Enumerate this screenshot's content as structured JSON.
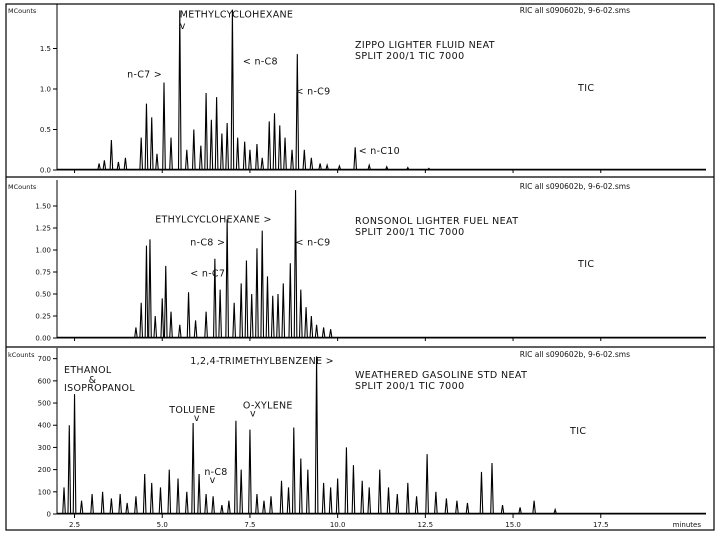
{
  "chart_data": [
    {
      "type": "line",
      "header": "RIC all s090602b,  9-6-02.sms",
      "unit": "MCounts",
      "yticks": [
        "0.0",
        "0.5",
        "1.0",
        "1.5"
      ],
      "ylim": [
        0,
        2.0
      ],
      "xlim": [
        2.0,
        20.5
      ],
      "comment": [
        "ZIPPO LIGHTER FLUID NEAT",
        "SPLIT 200/1 TIC 7000"
      ],
      "trace_label": "TIC",
      "annotations": [
        {
          "text": "METHYLCYCLOHEXANE",
          "x": 5.5,
          "y": 1.88
        },
        {
          "text": "v",
          "x": 5.5,
          "y": 1.74
        },
        {
          "text": "n-C7 >",
          "x": 4.0,
          "y": 1.14
        },
        {
          "text": "< n-C8",
          "x": 7.3,
          "y": 1.3
        },
        {
          "text": "< n-C9",
          "x": 8.8,
          "y": 0.93
        },
        {
          "text": "< n-C10",
          "x": 10.6,
          "y": 0.2
        }
      ],
      "peaks": [
        {
          "x": 3.2,
          "y": 0.08
        },
        {
          "x": 3.35,
          "y": 0.12
        },
        {
          "x": 3.55,
          "y": 0.37
        },
        {
          "x": 3.75,
          "y": 0.1
        },
        {
          "x": 3.95,
          "y": 0.15
        },
        {
          "x": 4.4,
          "y": 0.4
        },
        {
          "x": 4.55,
          "y": 0.82
        },
        {
          "x": 4.7,
          "y": 0.65
        },
        {
          "x": 4.85,
          "y": 0.2
        },
        {
          "x": 5.05,
          "y": 1.08
        },
        {
          "x": 5.25,
          "y": 0.4
        },
        {
          "x": 5.5,
          "y": 1.97
        },
        {
          "x": 5.7,
          "y": 0.25
        },
        {
          "x": 5.9,
          "y": 0.5
        },
        {
          "x": 6.1,
          "y": 0.3
        },
        {
          "x": 6.25,
          "y": 0.95
        },
        {
          "x": 6.4,
          "y": 0.62
        },
        {
          "x": 6.55,
          "y": 0.9
        },
        {
          "x": 6.7,
          "y": 0.45
        },
        {
          "x": 6.85,
          "y": 0.58
        },
        {
          "x": 7.0,
          "y": 1.98
        },
        {
          "x": 7.15,
          "y": 0.4
        },
        {
          "x": 7.35,
          "y": 0.35
        },
        {
          "x": 7.5,
          "y": 0.25
        },
        {
          "x": 7.7,
          "y": 0.32
        },
        {
          "x": 7.85,
          "y": 0.15
        },
        {
          "x": 8.05,
          "y": 0.6
        },
        {
          "x": 8.2,
          "y": 0.7
        },
        {
          "x": 8.35,
          "y": 0.55
        },
        {
          "x": 8.5,
          "y": 0.4
        },
        {
          "x": 8.7,
          "y": 0.25
        },
        {
          "x": 8.85,
          "y": 1.43
        },
        {
          "x": 9.05,
          "y": 0.25
        },
        {
          "x": 9.25,
          "y": 0.15
        },
        {
          "x": 9.5,
          "y": 0.08
        },
        {
          "x": 9.7,
          "y": 0.06
        },
        {
          "x": 10.05,
          "y": 0.05
        },
        {
          "x": 10.5,
          "y": 0.28
        },
        {
          "x": 10.9,
          "y": 0.06
        },
        {
          "x": 11.4,
          "y": 0.04
        },
        {
          "x": 12.0,
          "y": 0.03
        },
        {
          "x": 12.6,
          "y": 0.02
        }
      ]
    },
    {
      "type": "line",
      "header": "RIC all s090602b,  9-6-02.sms",
      "unit": "MCounts",
      "yticks": [
        "0.00",
        "0.25",
        "0.50",
        "0.75",
        "1.00",
        "1.25",
        "1.50"
      ],
      "ylim": [
        0,
        1.75
      ],
      "xlim": [
        2.0,
        20.5
      ],
      "comment": [
        "RONSONOL LIGHTER FUEL NEAT",
        "SPLIT 200/1 TIC 7000"
      ],
      "trace_label": "TIC",
      "annotations": [
        {
          "text": "ETHYLCYCLOHEXANE >",
          "x": 4.8,
          "y": 1.31
        },
        {
          "text": "n-C8 >",
          "x": 5.8,
          "y": 1.05
        },
        {
          "text": "< n-C7",
          "x": 5.8,
          "y": 0.7
        },
        {
          "text": "< n-C9",
          "x": 8.8,
          "y": 1.05
        }
      ],
      "peaks": [
        {
          "x": 4.25,
          "y": 0.12
        },
        {
          "x": 4.4,
          "y": 0.4
        },
        {
          "x": 4.55,
          "y": 1.05
        },
        {
          "x": 4.65,
          "y": 1.12
        },
        {
          "x": 4.8,
          "y": 0.25
        },
        {
          "x": 5.0,
          "y": 0.45
        },
        {
          "x": 5.1,
          "y": 0.82
        },
        {
          "x": 5.25,
          "y": 0.3
        },
        {
          "x": 5.5,
          "y": 0.15
        },
        {
          "x": 5.75,
          "y": 0.52
        },
        {
          "x": 5.95,
          "y": 0.2
        },
        {
          "x": 6.25,
          "y": 0.3
        },
        {
          "x": 6.5,
          "y": 0.9
        },
        {
          "x": 6.65,
          "y": 0.55
        },
        {
          "x": 6.85,
          "y": 1.35
        },
        {
          "x": 7.05,
          "y": 0.4
        },
        {
          "x": 7.25,
          "y": 0.62
        },
        {
          "x": 7.4,
          "y": 0.88
        },
        {
          "x": 7.55,
          "y": 0.5
        },
        {
          "x": 7.7,
          "y": 1.02
        },
        {
          "x": 7.85,
          "y": 1.22
        },
        {
          "x": 8.0,
          "y": 0.7
        },
        {
          "x": 8.15,
          "y": 0.48
        },
        {
          "x": 8.3,
          "y": 0.5
        },
        {
          "x": 8.45,
          "y": 0.62
        },
        {
          "x": 8.65,
          "y": 0.85
        },
        {
          "x": 8.8,
          "y": 1.68
        },
        {
          "x": 8.95,
          "y": 0.55
        },
        {
          "x": 9.1,
          "y": 0.35
        },
        {
          "x": 9.25,
          "y": 0.25
        },
        {
          "x": 9.4,
          "y": 0.15
        },
        {
          "x": 9.6,
          "y": 0.12
        },
        {
          "x": 9.8,
          "y": 0.1
        }
      ]
    },
    {
      "type": "line",
      "header": "RIC all s090602b,  9-6-02.sms",
      "unit": "kCounts",
      "yticks": [
        "0",
        "100",
        "200",
        "300",
        "400",
        "500",
        "600",
        "700"
      ],
      "ylim": [
        0,
        730
      ],
      "xlim": [
        2.0,
        20.5
      ],
      "xlabel": "minutes",
      "xticks": [
        "2.5",
        "5.0",
        "7.5",
        "10.0",
        "12.5",
        "15.0",
        "17.5"
      ],
      "xtick_values": [
        2.5,
        5.0,
        7.5,
        10.0,
        12.5,
        15.0,
        17.5
      ],
      "comment": [
        "WEATHERED GASOLINE STD NEAT",
        "SPLIT 200/1 TIC 7000"
      ],
      "trace_label": "TIC",
      "annotations": [
        {
          "text": "ETHANOL",
          "x": 2.2,
          "y": 635
        },
        {
          "text": "&",
          "x": 2.9,
          "y": 590
        },
        {
          "text": "ISOPROPANOL",
          "x": 2.2,
          "y": 555
        },
        {
          "text": "1,2,4-TRIMETHYLBENZENE >",
          "x": 5.8,
          "y": 675
        },
        {
          "text": "TOLUENE",
          "x": 5.2,
          "y": 455
        },
        {
          "text": "v",
          "x": 5.9,
          "y": 420
        },
        {
          "text": "O-XYLENE",
          "x": 7.3,
          "y": 475
        },
        {
          "text": "v",
          "x": 7.5,
          "y": 440
        },
        {
          "text": "n-C8",
          "x": 6.2,
          "y": 175
        },
        {
          "text": "v",
          "x": 6.35,
          "y": 140
        }
      ],
      "peaks": [
        {
          "x": 2.2,
          "y": 120
        },
        {
          "x": 2.35,
          "y": 400
        },
        {
          "x": 2.5,
          "y": 540
        },
        {
          "x": 2.7,
          "y": 60
        },
        {
          "x": 3.0,
          "y": 90
        },
        {
          "x": 3.3,
          "y": 100
        },
        {
          "x": 3.55,
          "y": 70
        },
        {
          "x": 3.8,
          "y": 90
        },
        {
          "x": 4.0,
          "y": 50
        },
        {
          "x": 4.25,
          "y": 80
        },
        {
          "x": 4.5,
          "y": 180
        },
        {
          "x": 4.7,
          "y": 140
        },
        {
          "x": 4.95,
          "y": 120
        },
        {
          "x": 5.2,
          "y": 200
        },
        {
          "x": 5.45,
          "y": 160
        },
        {
          "x": 5.7,
          "y": 100
        },
        {
          "x": 5.88,
          "y": 410
        },
        {
          "x": 6.05,
          "y": 180
        },
        {
          "x": 6.25,
          "y": 90
        },
        {
          "x": 6.45,
          "y": 80
        },
        {
          "x": 6.7,
          "y": 40
        },
        {
          "x": 6.9,
          "y": 60
        },
        {
          "x": 7.1,
          "y": 420
        },
        {
          "x": 7.25,
          "y": 200
        },
        {
          "x": 7.5,
          "y": 380
        },
        {
          "x": 7.7,
          "y": 90
        },
        {
          "x": 7.9,
          "y": 60
        },
        {
          "x": 8.1,
          "y": 80
        },
        {
          "x": 8.4,
          "y": 150
        },
        {
          "x": 8.6,
          "y": 120
        },
        {
          "x": 8.75,
          "y": 390
        },
        {
          "x": 8.95,
          "y": 250
        },
        {
          "x": 9.15,
          "y": 200
        },
        {
          "x": 9.4,
          "y": 710
        },
        {
          "x": 9.6,
          "y": 140
        },
        {
          "x": 9.8,
          "y": 120
        },
        {
          "x": 10.0,
          "y": 160
        },
        {
          "x": 10.25,
          "y": 300
        },
        {
          "x": 10.45,
          "y": 220
        },
        {
          "x": 10.7,
          "y": 150
        },
        {
          "x": 10.9,
          "y": 120
        },
        {
          "x": 11.2,
          "y": 200
        },
        {
          "x": 11.45,
          "y": 120
        },
        {
          "x": 11.7,
          "y": 90
        },
        {
          "x": 12.0,
          "y": 140
        },
        {
          "x": 12.25,
          "y": 80
        },
        {
          "x": 12.55,
          "y": 270
        },
        {
          "x": 12.8,
          "y": 100
        },
        {
          "x": 13.1,
          "y": 70
        },
        {
          "x": 13.4,
          "y": 60
        },
        {
          "x": 13.7,
          "y": 50
        },
        {
          "x": 14.1,
          "y": 190
        },
        {
          "x": 14.4,
          "y": 230
        },
        {
          "x": 14.7,
          "y": 40
        },
        {
          "x": 15.2,
          "y": 30
        },
        {
          "x": 15.6,
          "y": 60
        },
        {
          "x": 16.2,
          "y": 20
        }
      ]
    }
  ]
}
